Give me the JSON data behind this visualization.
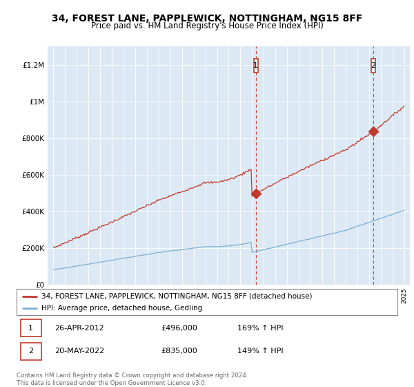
{
  "title": "34, FOREST LANE, PAPPLEWICK, NOTTINGHAM, NG15 8FF",
  "subtitle": "Price paid vs. HM Land Registry's House Price Index (HPI)",
  "title_fontsize": 10,
  "subtitle_fontsize": 8.5,
  "plot_bg_color": "#dce9f5",
  "hpi_color": "#7bafd4",
  "price_color": "#c0392b",
  "ylim": [
    0,
    1300000
  ],
  "yticks": [
    0,
    200000,
    400000,
    600000,
    800000,
    1000000,
    1200000
  ],
  "ytick_labels": [
    "£0",
    "£200K",
    "£400K",
    "£600K",
    "£800K",
    "£1M",
    "£1.2M"
  ],
  "sale1_x": 2012.32,
  "sale1_y": 496000,
  "sale2_x": 2022.38,
  "sale2_y": 835000,
  "legend_line1": "34, FOREST LANE, PAPPLEWICK, NOTTINGHAM, NG15 8FF (detached house)",
  "legend_line2": "HPI: Average price, detached house, Gedling",
  "table_row1_num": "1",
  "table_row1_date": "26-APR-2012",
  "table_row1_price": "£496,000",
  "table_row1_hpi": "169% ↑ HPI",
  "table_row2_num": "2",
  "table_row2_date": "20-MAY-2022",
  "table_row2_price": "£835,000",
  "table_row2_hpi": "149% ↑ HPI",
  "footer": "Contains HM Land Registry data © Crown copyright and database right 2024.\nThis data is licensed under the Open Government Licence v3.0.",
  "xmin": 1994.5,
  "xmax": 2025.5
}
